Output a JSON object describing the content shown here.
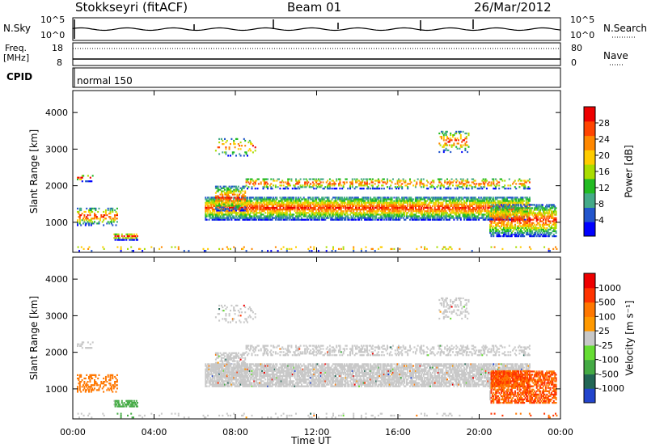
{
  "header": {
    "station": "Stokkseyri (fitACF)",
    "beam": "Beam 01",
    "date": "26/Mar/2012"
  },
  "noise_panel": {
    "left_label": "N.Sky",
    "right_label": "N.Search",
    "ticks": [
      "10^5",
      "10^0"
    ]
  },
  "freq_panel": {
    "left_label_1": "Freq.",
    "left_label_2": "[MHz]",
    "right_label": "Nave",
    "left_ticks": [
      "18",
      "8"
    ],
    "right_ticks": [
      "80",
      "0"
    ]
  },
  "cpid_panel": {
    "label": "CPID",
    "text": "normal 150"
  },
  "chart_data": [
    {
      "type": "heatmap",
      "name": "power",
      "ylabel": "Slant Range [km]",
      "ylim": [
        180,
        4600
      ],
      "yticks": [
        "1000",
        "2000",
        "3000",
        "4000"
      ],
      "xlim": [
        0,
        24
      ],
      "xticks": [
        "00:00",
        "04:00",
        "08:00",
        "12:00",
        "16:00",
        "20:00",
        "00:00"
      ],
      "colorbar": {
        "label": "Power [dB]",
        "ticks": [
          "4",
          "8",
          "12",
          "16",
          "20",
          "24",
          "28"
        ],
        "colors": [
          "#0000ff",
          "#2255cc",
          "#44aa88",
          "#22bb22",
          "#aadd00",
          "#ffcc00",
          "#ff8800",
          "#ff4400",
          "#ee0000"
        ]
      }
    },
    {
      "type": "heatmap",
      "name": "velocity",
      "ylabel": "Slant Range [km]",
      "ylim": [
        180,
        4600
      ],
      "yticks": [
        "1000",
        "2000",
        "3000",
        "4000"
      ],
      "xlim": [
        0,
        24
      ],
      "xticks": [
        "00:00",
        "04:00",
        "08:00",
        "12:00",
        "16:00",
        "20:00",
        "00:00"
      ],
      "xlabel": "Time UT",
      "colorbar": {
        "label": "Velocity [m s⁻¹]",
        "ticks": [
          "1000",
          "500",
          "100",
          "25",
          "-25",
          "-100",
          "-500",
          "-1000"
        ],
        "colors": [
          "#2244cc",
          "#226655",
          "#44aa44",
          "#66dd33",
          "#c8c8c8",
          "#ff9900",
          "#ff7700",
          "#ff3300",
          "#ee0000"
        ]
      }
    }
  ]
}
